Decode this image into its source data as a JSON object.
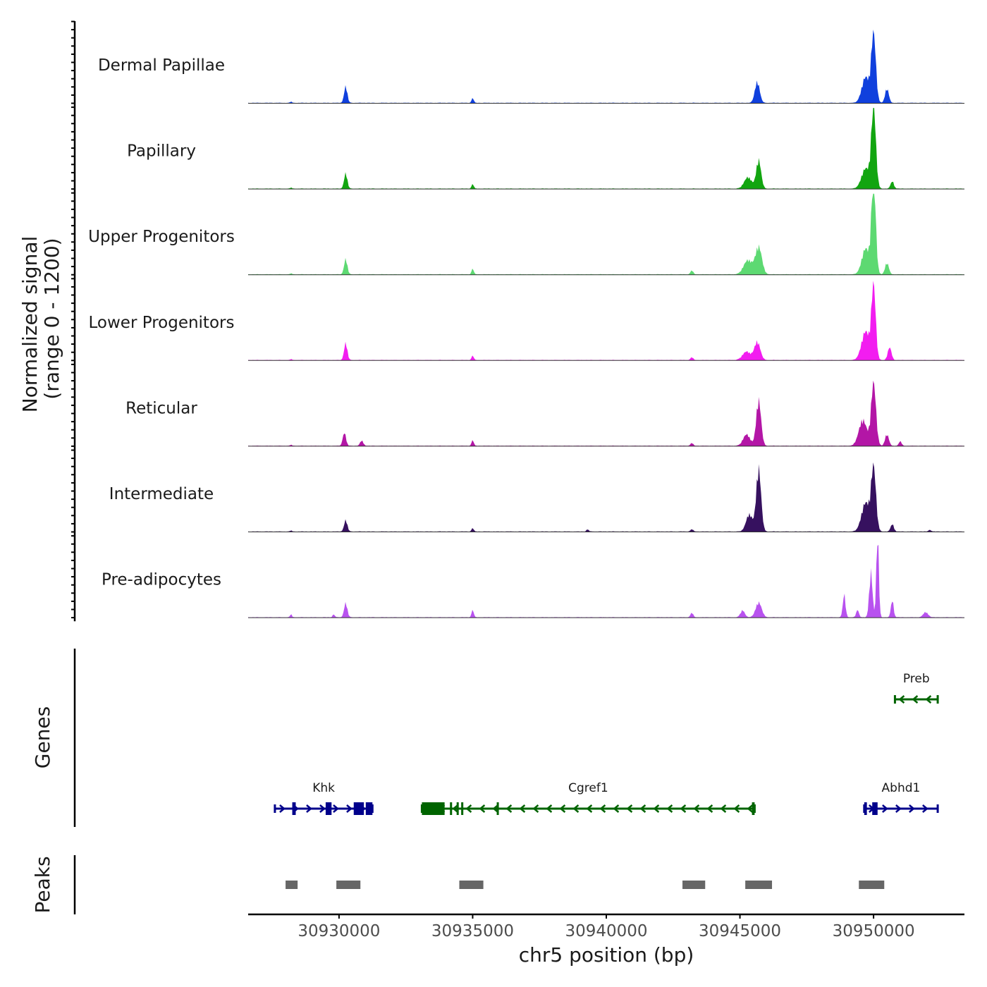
{
  "chart_data": {
    "type": "area",
    "title": "",
    "region": {
      "chrom": "chr5",
      "start": 30926600,
      "end": 30953400
    },
    "ylabel_line1": "Normalized signal",
    "ylabel_line2": "(range 0 - 1200)",
    "ylim": [
      0,
      1200
    ],
    "xlabel": "chr5 position (bp)",
    "x_ticks": [
      30930000,
      30935000,
      30940000,
      30945000,
      30950000
    ],
    "x_tick_labels": [
      "30930000",
      "30935000",
      "30940000",
      "30945000",
      "30950000"
    ],
    "series": [
      {
        "name": "Dermal Papillae",
        "color": "#1040dd",
        "peaks": [
          [
            30928200,
            25,
            30
          ],
          [
            30930250,
            290,
            60
          ],
          [
            30935000,
            85,
            40
          ],
          [
            30945650,
            370,
            90
          ],
          [
            30950000,
            1200,
            85
          ],
          [
            30949700,
            450,
            140
          ],
          [
            30950500,
            250,
            70
          ]
        ]
      },
      {
        "name": "Papillary",
        "color": "#12a510",
        "peaks": [
          [
            30928200,
            20,
            30
          ],
          [
            30930250,
            270,
            60
          ],
          [
            30935000,
            80,
            40
          ],
          [
            30945700,
            500,
            90
          ],
          [
            30945300,
            200,
            140
          ],
          [
            30950000,
            1420,
            85
          ],
          [
            30949700,
            350,
            150
          ],
          [
            30950700,
            130,
            60
          ]
        ]
      },
      {
        "name": "Upper Progenitors",
        "color": "#5dd972",
        "peaks": [
          [
            30928200,
            20,
            30
          ],
          [
            30930250,
            270,
            60
          ],
          [
            30935000,
            100,
            40
          ],
          [
            30943200,
            70,
            50
          ],
          [
            30945700,
            480,
            120
          ],
          [
            30945300,
            250,
            160
          ],
          [
            30950000,
            1700,
            80
          ],
          [
            30949700,
            450,
            140
          ],
          [
            30950500,
            200,
            70
          ]
        ]
      },
      {
        "name": "Lower Progenitors",
        "color": "#f21df0",
        "peaks": [
          [
            30928200,
            20,
            30
          ],
          [
            30930250,
            300,
            60
          ],
          [
            30935000,
            80,
            40
          ],
          [
            30943200,
            50,
            50
          ],
          [
            30945650,
            320,
            110
          ],
          [
            30945250,
            150,
            150
          ],
          [
            30950000,
            1280,
            80
          ],
          [
            30949700,
            500,
            150
          ],
          [
            30950600,
            220,
            70
          ]
        ]
      },
      {
        "name": "Reticular",
        "color": "#b316a6",
        "peaks": [
          [
            30928200,
            20,
            30
          ],
          [
            30930200,
            230,
            60
          ],
          [
            30930850,
            90,
            60
          ],
          [
            30935000,
            100,
            40
          ],
          [
            30943200,
            50,
            50
          ],
          [
            30945700,
            800,
            90
          ],
          [
            30945250,
            200,
            130
          ],
          [
            30950000,
            1100,
            90
          ],
          [
            30949600,
            450,
            150
          ],
          [
            30950500,
            200,
            70
          ],
          [
            30951000,
            80,
            50
          ]
        ]
      },
      {
        "name": "Intermediate",
        "color": "#36115f",
        "peaks": [
          [
            30928200,
            20,
            30
          ],
          [
            30930250,
            200,
            60
          ],
          [
            30935000,
            60,
            40
          ],
          [
            30939300,
            40,
            40
          ],
          [
            30943200,
            40,
            50
          ],
          [
            30945700,
            1100,
            90
          ],
          [
            30945350,
            300,
            120
          ],
          [
            30950000,
            1100,
            90
          ],
          [
            30949700,
            500,
            150
          ],
          [
            30950700,
            130,
            60
          ],
          [
            30952100,
            30,
            50
          ]
        ]
      },
      {
        "name": "Pre-adipocytes",
        "color": "#b852ef",
        "peaks": [
          [
            30928200,
            60,
            30
          ],
          [
            30929800,
            50,
            40
          ],
          [
            30930250,
            250,
            60
          ],
          [
            30935000,
            130,
            40
          ],
          [
            30943200,
            80,
            50
          ],
          [
            30945700,
            260,
            110
          ],
          [
            30945100,
            120,
            80
          ],
          [
            30948900,
            400,
            50
          ],
          [
            30949400,
            130,
            50
          ],
          [
            30949900,
            800,
            60
          ],
          [
            30950150,
            1500,
            45
          ],
          [
            30950700,
            300,
            50
          ],
          [
            30951950,
            90,
            90
          ]
        ]
      }
    ],
    "genes_track_label": "Genes",
    "genes": [
      {
        "name": "Preb",
        "start": 30950800,
        "end": 30952400,
        "strand": "-",
        "row": 0,
        "color": "#006400",
        "exons": []
      },
      {
        "name": "Khk",
        "start": 30927600,
        "end": 30931250,
        "strand": "+",
        "row": 1,
        "color": "#00008b",
        "exons": [
          [
            30928250,
            30928380
          ],
          [
            30929500,
            30929720
          ],
          [
            30930550,
            30930930
          ],
          [
            30931000,
            30931250
          ]
        ]
      },
      {
        "name": "Cgref1",
        "start": 30933100,
        "end": 30945550,
        "strand": "-",
        "row": 1,
        "color": "#006400",
        "exons": [
          [
            30933100,
            30933950
          ],
          [
            30934150,
            30934230
          ],
          [
            30934400,
            30934470
          ],
          [
            30934570,
            30934650
          ],
          [
            30935900,
            30935970
          ],
          [
            30945450,
            30945550
          ]
        ]
      },
      {
        "name": "Abhd1",
        "start": 30949650,
        "end": 30952400,
        "strand": "+",
        "row": 1,
        "color": "#00008b",
        "exons": [
          [
            30949650,
            30949750
          ],
          [
            30949950,
            30950150
          ]
        ]
      }
    ],
    "peaks_track_label": "Peaks",
    "peak_color": "#666666",
    "peak_regions": [
      [
        30928000,
        30928450
      ],
      [
        30929900,
        30930800
      ],
      [
        30934500,
        30935400
      ],
      [
        30942850,
        30943700
      ],
      [
        30945200,
        30946200
      ],
      [
        30949450,
        30950400
      ]
    ]
  }
}
